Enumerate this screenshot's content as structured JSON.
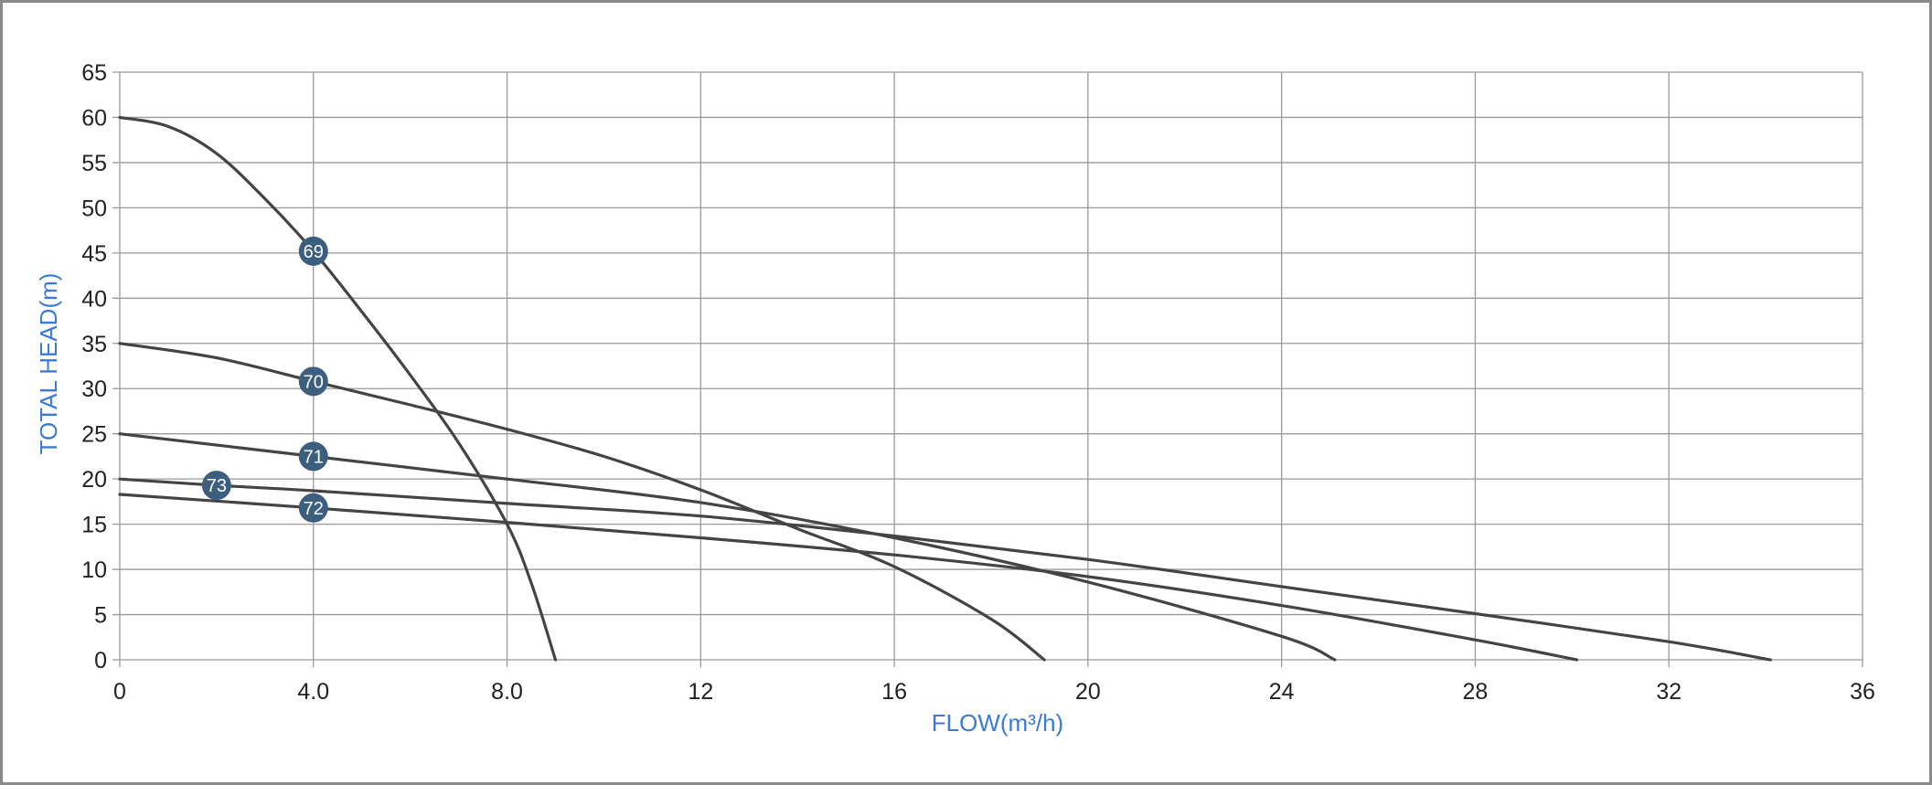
{
  "chart_data": {
    "type": "line",
    "xlabel": "FLOW(m³/h)",
    "ylabel": "TOTAL HEAD(m)",
    "xlim": [
      0,
      36
    ],
    "ylim": [
      0,
      65
    ],
    "x_ticks": [
      0,
      4,
      8,
      12,
      16,
      20,
      24,
      28,
      32,
      36
    ],
    "x_tick_labels": [
      "0",
      "4.0",
      "8.0",
      "12",
      "16",
      "20",
      "24",
      "28",
      "32",
      "36"
    ],
    "y_ticks": [
      0,
      5,
      10,
      15,
      20,
      25,
      30,
      35,
      40,
      45,
      50,
      55,
      60,
      65
    ],
    "y_tick_labels": [
      "0",
      "5",
      "10",
      "15",
      "20",
      "25",
      "30",
      "35",
      "40",
      "45",
      "50",
      "55",
      "60",
      "65"
    ],
    "grid": true,
    "colors": {
      "curve": "#444444",
      "marker": "#3c5f80",
      "grid": "#9a9a9a",
      "axis_title": "#3a7bd5"
    },
    "series": [
      {
        "name": "69",
        "label_at": [
          4.0,
          45.2
        ],
        "points": [
          [
            0,
            60
          ],
          [
            1,
            59
          ],
          [
            2,
            56
          ],
          [
            3,
            51
          ],
          [
            4,
            45.2
          ],
          [
            5,
            38.5
          ],
          [
            6,
            31.5
          ],
          [
            7,
            24
          ],
          [
            8,
            15
          ],
          [
            8.5,
            8.5
          ],
          [
            9,
            0
          ]
        ]
      },
      {
        "name": "70",
        "label_at": [
          4.0,
          30.8
        ],
        "points": [
          [
            0,
            35
          ],
          [
            2,
            33.4
          ],
          [
            4,
            30.8
          ],
          [
            6,
            28.2
          ],
          [
            8,
            25.5
          ],
          [
            10,
            22.5
          ],
          [
            12,
            18.8
          ],
          [
            14,
            14.5
          ],
          [
            16,
            10.3
          ],
          [
            18,
            4.5
          ],
          [
            19.1,
            0
          ]
        ]
      },
      {
        "name": "71",
        "label_at": [
          4.0,
          22.5
        ],
        "points": [
          [
            0,
            25
          ],
          [
            4,
            22.5
          ],
          [
            8,
            20
          ],
          [
            12,
            17.4
          ],
          [
            16,
            13.5
          ],
          [
            20,
            8.6
          ],
          [
            24,
            2.6
          ],
          [
            25.1,
            0
          ]
        ]
      },
      {
        "name": "72",
        "label_at": [
          4.0,
          16.8
        ],
        "points": [
          [
            0,
            18.3
          ],
          [
            4,
            16.8
          ],
          [
            8,
            15.2
          ],
          [
            12,
            13.5
          ],
          [
            16,
            11.6
          ],
          [
            20,
            9.2
          ],
          [
            24,
            6
          ],
          [
            28,
            2.2
          ],
          [
            30.1,
            0
          ]
        ]
      },
      {
        "name": "73",
        "label_at": [
          2.0,
          19.3
        ],
        "points": [
          [
            0,
            20
          ],
          [
            2,
            19.3
          ],
          [
            4,
            18.7
          ],
          [
            8,
            17.3
          ],
          [
            12,
            15.9
          ],
          [
            16,
            13.7
          ],
          [
            20,
            11.1
          ],
          [
            24,
            8.1
          ],
          [
            28,
            5.1
          ],
          [
            32,
            2
          ],
          [
            34.1,
            0
          ]
        ]
      }
    ]
  }
}
